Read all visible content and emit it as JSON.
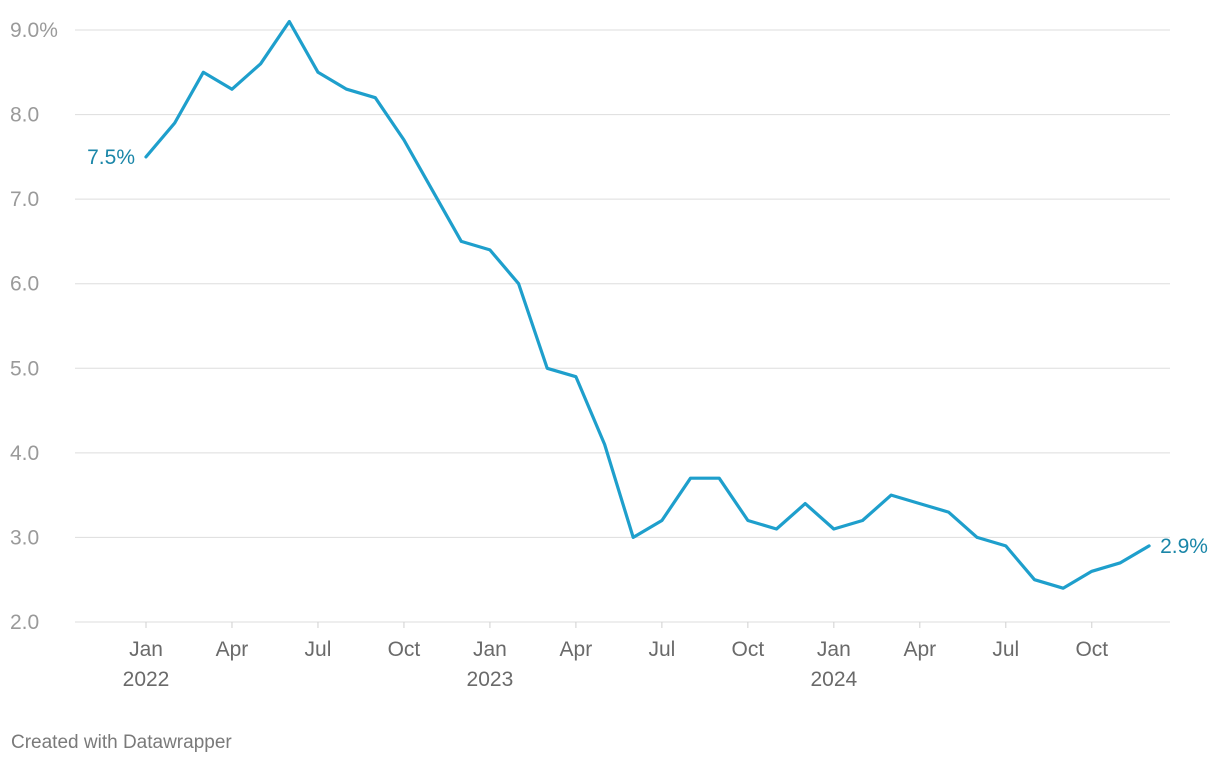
{
  "chart_data": {
    "type": "line",
    "title": "",
    "xlabel": "",
    "ylabel": "",
    "ylim": [
      2.0,
      9.0
    ],
    "yticks": [
      {
        "value": 2.0,
        "label": "2.0"
      },
      {
        "value": 3.0,
        "label": "3.0"
      },
      {
        "value": 4.0,
        "label": "4.0"
      },
      {
        "value": 5.0,
        "label": "5.0"
      },
      {
        "value": 6.0,
        "label": "6.0"
      },
      {
        "value": 7.0,
        "label": "7.0"
      },
      {
        "value": 8.0,
        "label": "8.0"
      },
      {
        "value": 9.0,
        "label": "9.0%"
      }
    ],
    "xticks": [
      {
        "date": "2022-01",
        "label": "Jan",
        "year": "2022"
      },
      {
        "date": "2022-04",
        "label": "Apr",
        "year": ""
      },
      {
        "date": "2022-07",
        "label": "Jul",
        "year": ""
      },
      {
        "date": "2022-10",
        "label": "Oct",
        "year": ""
      },
      {
        "date": "2023-01",
        "label": "Jan",
        "year": "2023"
      },
      {
        "date": "2023-04",
        "label": "Apr",
        "year": ""
      },
      {
        "date": "2023-07",
        "label": "Jul",
        "year": ""
      },
      {
        "date": "2023-10",
        "label": "Oct",
        "year": ""
      },
      {
        "date": "2024-01",
        "label": "Jan",
        "year": "2024"
      },
      {
        "date": "2024-04",
        "label": "Apr",
        "year": ""
      },
      {
        "date": "2024-07",
        "label": "Jul",
        "year": ""
      },
      {
        "date": "2024-10",
        "label": "Oct",
        "year": ""
      }
    ],
    "series": [
      {
        "color": "#1e9fcc",
        "points": [
          {
            "x": "2022-01",
            "y": 7.5
          },
          {
            "x": "2022-02",
            "y": 7.9
          },
          {
            "x": "2022-03",
            "y": 8.5
          },
          {
            "x": "2022-04",
            "y": 8.3
          },
          {
            "x": "2022-05",
            "y": 8.6
          },
          {
            "x": "2022-06",
            "y": 9.1
          },
          {
            "x": "2022-07",
            "y": 8.5
          },
          {
            "x": "2022-08",
            "y": 8.3
          },
          {
            "x": "2022-09",
            "y": 8.2
          },
          {
            "x": "2022-10",
            "y": 7.7
          },
          {
            "x": "2022-11",
            "y": 7.1
          },
          {
            "x": "2022-12",
            "y": 6.5
          },
          {
            "x": "2023-01",
            "y": 6.4
          },
          {
            "x": "2023-02",
            "y": 6.0
          },
          {
            "x": "2023-03",
            "y": 5.0
          },
          {
            "x": "2023-04",
            "y": 4.9
          },
          {
            "x": "2023-05",
            "y": 4.1
          },
          {
            "x": "2023-06",
            "y": 3.0
          },
          {
            "x": "2023-07",
            "y": 3.2
          },
          {
            "x": "2023-08",
            "y": 3.7
          },
          {
            "x": "2023-09",
            "y": 3.7
          },
          {
            "x": "2023-10",
            "y": 3.2
          },
          {
            "x": "2023-11",
            "y": 3.1
          },
          {
            "x": "2023-12",
            "y": 3.4
          },
          {
            "x": "2024-01",
            "y": 3.1
          },
          {
            "x": "2024-02",
            "y": 3.2
          },
          {
            "x": "2024-03",
            "y": 3.5
          },
          {
            "x": "2024-04",
            "y": 3.4
          },
          {
            "x": "2024-05",
            "y": 3.3
          },
          {
            "x": "2024-06",
            "y": 3.0
          },
          {
            "x": "2024-07",
            "y": 2.9
          },
          {
            "x": "2024-08",
            "y": 2.5
          },
          {
            "x": "2024-09",
            "y": 2.4
          },
          {
            "x": "2024-10",
            "y": 2.6
          },
          {
            "x": "2024-11",
            "y": 2.7
          },
          {
            "x": "2024-12",
            "y": 2.9
          }
        ]
      }
    ],
    "annotations": {
      "start_label": "7.5%",
      "end_label": "2.9%",
      "label_color": "#1a86a8"
    },
    "grid": true,
    "legend": "none"
  },
  "footer": {
    "credit": "Created with Datawrapper"
  }
}
